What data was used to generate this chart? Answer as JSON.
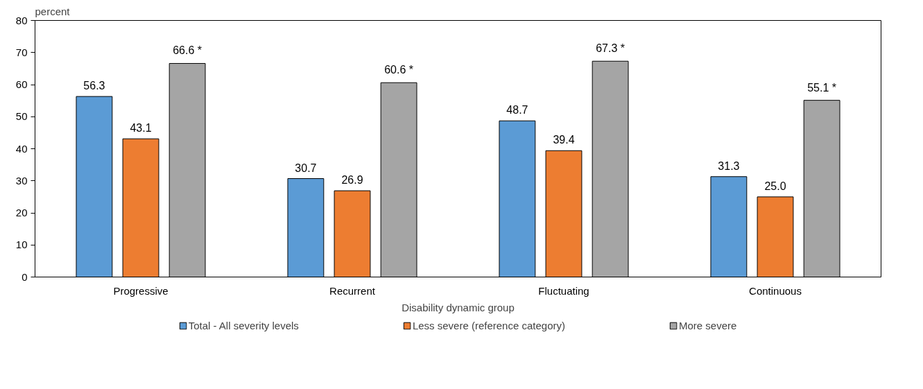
{
  "chart_data": {
    "type": "bar",
    "ylabel": "percent",
    "xlabel": "Disability dynamic group",
    "categories": [
      "Progressive",
      "Recurrent",
      "Fluctuating",
      "Continuous"
    ],
    "series": [
      {
        "name": "Total - All severity levels",
        "color": "#5b9bd5",
        "values": [
          56.3,
          30.7,
          48.7,
          31.3
        ],
        "value_labels": [
          "56.3",
          "30.7",
          "48.7",
          "31.3"
        ]
      },
      {
        "name": "Less severe (reference category)",
        "color": "#ed7d31",
        "values": [
          43.1,
          26.9,
          39.4,
          25.0
        ],
        "value_labels": [
          "43.1",
          "26.9",
          "39.4",
          "25.0"
        ]
      },
      {
        "name": "More severe",
        "color": "#a5a5a5",
        "values": [
          66.6,
          60.6,
          67.3,
          55.1
        ],
        "value_labels": [
          "66.6 *",
          "60.6 *",
          "67.3 *",
          "55.1 *"
        ]
      }
    ],
    "ylim": [
      0,
      80
    ],
    "yticks": [
      0,
      10,
      20,
      30,
      40,
      50,
      60,
      70,
      80
    ],
    "grid": false,
    "legend": "bottom"
  }
}
